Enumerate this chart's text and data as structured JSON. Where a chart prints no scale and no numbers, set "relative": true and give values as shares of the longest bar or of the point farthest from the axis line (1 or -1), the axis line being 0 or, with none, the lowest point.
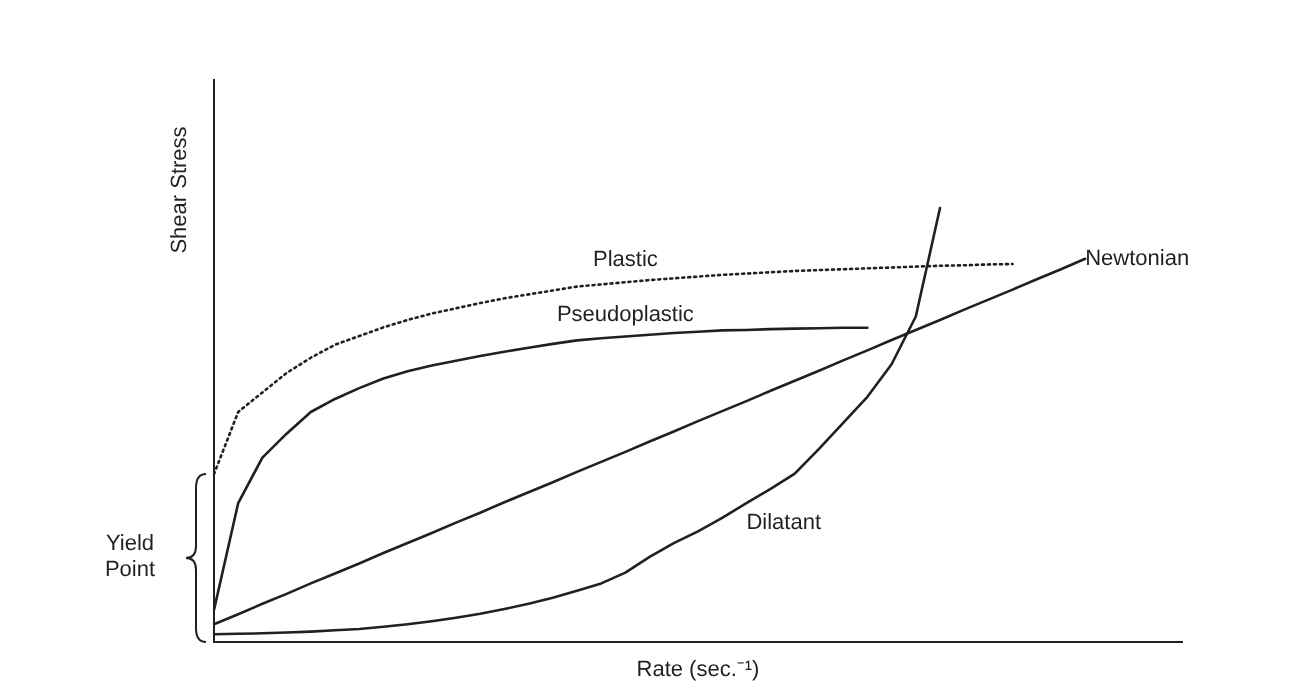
{
  "chart_data": {
    "type": "line",
    "relative": true,
    "xlabel": "Rate (sec.⁻¹)",
    "ylabel": "Shear Stress",
    "marker": "none",
    "grid": false,
    "legend": false,
    "categories": [
      null,
      null,
      null,
      null,
      null,
      null,
      null,
      null,
      null,
      null,
      null,
      null,
      null,
      null,
      null,
      null,
      null,
      null,
      null,
      null,
      null,
      null,
      null,
      null,
      null,
      null,
      null,
      null,
      null,
      null,
      null,
      null,
      null,
      null,
      null,
      null,
      null,
      null,
      null,
      null,
      null
    ],
    "series": [
      {
        "name": "Plastic",
        "color": "#231f20",
        "line_style": "dotted",
        "values": [
          0.387,
          0.53,
          0.575,
          0.62,
          0.655,
          0.685,
          0.705,
          0.725,
          0.742,
          0.757,
          0.769,
          0.781,
          0.792,
          0.801,
          0.81,
          0.819,
          0.824,
          0.829,
          0.834,
          0.838,
          0.842,
          0.846,
          0.849,
          0.852,
          0.855,
          0.857,
          0.859,
          0.861,
          0.863,
          0.865,
          0.867,
          0.868,
          0.87,
          0.871,
          null,
          null,
          null,
          null,
          null,
          null,
          null
        ]
      },
      {
        "name": "Pseudoplastic",
        "color": "#231f20",
        "line_style": "solid",
        "values": [
          0.074,
          0.32,
          0.425,
          0.48,
          0.53,
          0.56,
          0.585,
          0.607,
          0.624,
          0.637,
          0.648,
          0.659,
          0.669,
          0.678,
          0.687,
          0.695,
          0.7,
          0.704,
          0.708,
          0.712,
          0.715,
          0.718,
          0.719,
          0.721,
          0.722,
          0.723,
          0.724,
          0.724,
          null,
          null,
          null,
          null,
          null,
          null,
          null,
          null,
          null,
          null,
          null,
          null,
          null
        ]
      },
      {
        "name": "Newtonian",
        "color": "#231f20",
        "line_style": "solid",
        "values": [
          0.041,
          0.064,
          0.088,
          0.111,
          0.135,
          0.158,
          0.181,
          0.205,
          0.228,
          0.251,
          0.275,
          0.298,
          0.322,
          0.345,
          0.368,
          0.392,
          0.415,
          0.438,
          0.462,
          0.485,
          0.509,
          0.532,
          0.555,
          0.579,
          0.602,
          0.625,
          0.649,
          0.672,
          0.696,
          0.719,
          0.742,
          0.766,
          0.789,
          0.812,
          0.836,
          0.859,
          0.883,
          null,
          null,
          null,
          null
        ]
      },
      {
        "name": "Dilatant",
        "color": "#231f20",
        "line_style": "solid",
        "values": [
          0.018,
          0.019,
          0.02,
          0.022,
          0.024,
          0.027,
          0.03,
          0.035,
          0.041,
          0.048,
          0.056,
          0.065,
          0.076,
          0.088,
          0.102,
          0.118,
          0.135,
          0.16,
          0.196,
          0.228,
          0.255,
          0.286,
          0.32,
          0.353,
          0.388,
          0.445,
          0.505,
          0.565,
          0.64,
          0.75,
          1,
          null,
          null,
          null,
          null,
          null,
          null,
          null,
          null,
          null,
          null
        ]
      }
    ],
    "annotations": [
      "Yield Point"
    ]
  }
}
